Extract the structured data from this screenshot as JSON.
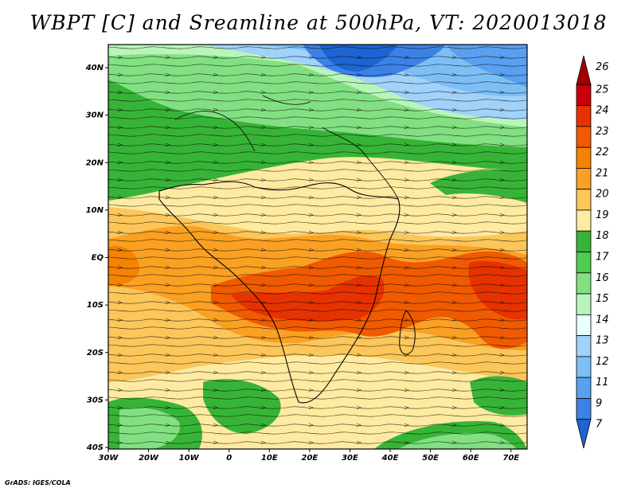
{
  "title": "WBPT [C] and Sreamline at 500hPa, VT: 2020013018",
  "footer": "GrADS: IGES/COLA",
  "map": {
    "lon_labels": [
      "30W",
      "20W",
      "10W",
      "0",
      "10E",
      "20E",
      "30E",
      "40E",
      "50E",
      "60E",
      "70E"
    ],
    "lat_labels": [
      "40N",
      "30N",
      "20N",
      "10N",
      "EQ",
      "10S",
      "20S",
      "30S",
      "40S"
    ],
    "field": "Wet-bulb potential temperature",
    "level": "500hPa",
    "valid_time": "2020013018"
  },
  "colorbar": {
    "levels": [
      "26",
      "25",
      "24",
      "23",
      "22",
      "21",
      "20",
      "19",
      "18",
      "17",
      "16",
      "15",
      "14",
      "13",
      "12",
      "11",
      "9",
      "7"
    ],
    "colors": [
      "#a50000",
      "#c8000a",
      "#e63200",
      "#f05a00",
      "#f58200",
      "#faa022",
      "#fcc65a",
      "#feeaa0",
      "#37b437",
      "#4fcb4f",
      "#82e082",
      "#b9f5b9",
      "#e6ffff",
      "#a0d2fa",
      "#7dbef5",
      "#5aa0f0",
      "#3c82e6",
      "#1e64d2"
    ]
  }
}
